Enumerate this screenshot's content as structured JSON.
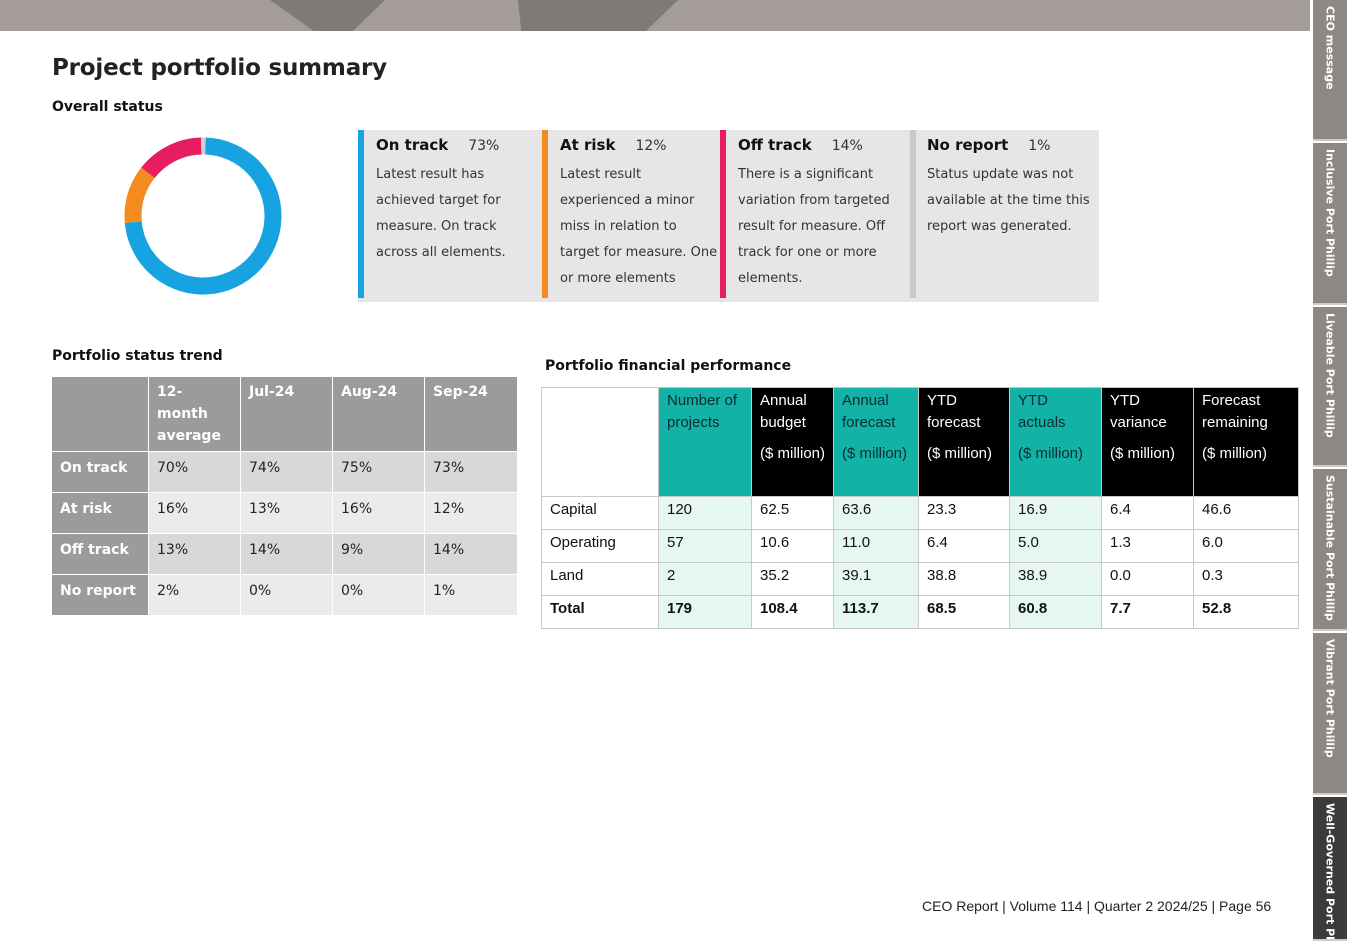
{
  "page_title": "Project portfolio summary",
  "overall_status": {
    "heading": "Overall status",
    "chart_data": {
      "type": "pie",
      "variant": "donut",
      "title": "Overall status",
      "slices": [
        {
          "label": "On track",
          "value": 73,
          "color": "#17a3e1"
        },
        {
          "label": "At risk",
          "value": 12,
          "color": "#f58a1f"
        },
        {
          "label": "Off track",
          "value": 14,
          "color": "#e61e5f"
        },
        {
          "label": "No report",
          "value": 1,
          "color": "#cfcfcf"
        }
      ]
    },
    "cards": [
      {
        "label": "On track",
        "pct": "73%",
        "color": "#17a3e1",
        "desc": "Latest result has achieved target for measure. On track across all elements."
      },
      {
        "label": "At risk",
        "pct": "12%",
        "color": "#f58a1f",
        "desc": "Latest result experienced a minor miss in relation to target for measure. One or more elements"
      },
      {
        "label": "Off track",
        "pct": "14%",
        "color": "#e61e5f",
        "desc": "There is a significant variation from targeted result for measure. Off track for one or more elements."
      },
      {
        "label": "No report",
        "pct": "1%",
        "color": "#c9c9c9",
        "desc": "Status update was not available at the time this report was generated."
      }
    ]
  },
  "trend": {
    "heading": "Portfolio status trend",
    "columns": [
      "",
      "12-month average",
      "Jul-24",
      "Aug-24",
      "Sep-24"
    ],
    "rows": [
      {
        "label": "On track",
        "values": [
          "70%",
          "74%",
          "75%",
          "73%"
        ]
      },
      {
        "label": "At risk",
        "values": [
          "16%",
          "13%",
          "16%",
          "12%"
        ]
      },
      {
        "label": "Off track",
        "values": [
          "13%",
          "14%",
          "9%",
          "14%"
        ]
      },
      {
        "label": "No report",
        "values": [
          "2%",
          "0%",
          "0%",
          "1%"
        ]
      }
    ]
  },
  "finance": {
    "heading": "Portfolio financial performance",
    "columns": [
      {
        "line1": "",
        "line2": "",
        "style": "blank"
      },
      {
        "line1": "Number of projects",
        "line2": "",
        "style": "teal"
      },
      {
        "line1": "Annual budget",
        "line2": "($ million)",
        "style": "dark"
      },
      {
        "line1": "Annual forecast",
        "line2": "($ million)",
        "style": "teal"
      },
      {
        "line1": "YTD forecast",
        "line2": "($ million)",
        "style": "dark"
      },
      {
        "line1": "YTD actuals",
        "line2": "($ million)",
        "style": "teal"
      },
      {
        "line1": "YTD variance",
        "line2": "($ million)",
        "style": "dark"
      },
      {
        "line1": "Forecast remaining",
        "line2": "($ million)",
        "style": "dark"
      }
    ],
    "rows": [
      {
        "label": "Capital",
        "values": [
          "120",
          "62.5",
          "63.6",
          "23.3",
          "16.9",
          "6.4",
          "46.6"
        ]
      },
      {
        "label": "Operating",
        "values": [
          "57",
          "10.6",
          "11.0",
          "6.4",
          "5.0",
          "1.3",
          "6.0"
        ]
      },
      {
        "label": "Land",
        "values": [
          "2",
          "35.2",
          "39.1",
          "38.8",
          "38.9",
          "0.0",
          "0.3"
        ]
      },
      {
        "label": "Total",
        "values": [
          "179",
          "108.4",
          "113.7",
          "68.5",
          "60.8",
          "7.7",
          "52.8"
        ]
      }
    ]
  },
  "side_tabs": [
    {
      "label": "CEO message"
    },
    {
      "label": "Inclusive Port Phillip"
    },
    {
      "label": "Liveable Port Phillip"
    },
    {
      "label": "Sustainable Port Phillip"
    },
    {
      "label": "Vibrant Port Phillip"
    },
    {
      "label": "Well-Governed Port Phillip",
      "active": true
    }
  ],
  "footer": "CEO Report | Volume 114  | Quarter 2 2024/25 | Page 56"
}
